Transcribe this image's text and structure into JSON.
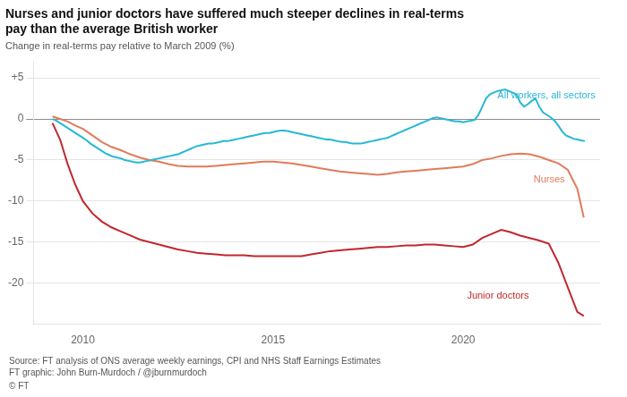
{
  "chart_data": {
    "type": "line",
    "title": "Nurses and junior doctors have suffered much steeper declines in real-terms\npay than the average British worker",
    "subtitle": "Change in real-terms pay relative to March 2009 (%)",
    "source": "Source: FT analysis of ONS average weekly earnings, CPI and NHS Staff Earnings Estimates\nFT graphic: John Burn-Murdoch / @jburnmurdoch",
    "copyright": "© FT",
    "xlim": [
      2008.7,
      2023.6
    ],
    "xticks": [
      2010,
      2015,
      2020
    ],
    "ylim": [
      -25,
      7
    ],
    "yticks": [
      {
        "value": 5,
        "label": "+5"
      },
      0,
      -5,
      -10,
      -15,
      -20
    ],
    "grid": "y",
    "series": [
      {
        "name": "All workers, all sectors",
        "color": "#27B8D4",
        "x": [
          2009.2,
          2009.3,
          2009.4,
          2009.5,
          2009.6,
          2009.7,
          2009.8,
          2009.9,
          2010.0,
          2010.1,
          2010.2,
          2010.3,
          2010.4,
          2010.5,
          2010.6,
          2010.7,
          2010.8,
          2010.9,
          2011.0,
          2011.1,
          2011.2,
          2011.3,
          2011.4,
          2011.5,
          2011.6,
          2011.7,
          2011.8,
          2011.9,
          2012.0,
          2012.1,
          2012.2,
          2012.3,
          2012.4,
          2012.5,
          2012.6,
          2012.7,
          2012.8,
          2012.9,
          2013.0,
          2013.1,
          2013.2,
          2013.3,
          2013.4,
          2013.5,
          2013.6,
          2013.7,
          2013.8,
          2013.9,
          2014.0,
          2014.1,
          2014.2,
          2014.3,
          2014.4,
          2014.5,
          2014.6,
          2014.7,
          2014.8,
          2014.9,
          2015.0,
          2015.1,
          2015.2,
          2015.3,
          2015.4,
          2015.5,
          2015.6,
          2015.7,
          2015.8,
          2015.9,
          2016.0,
          2016.1,
          2016.2,
          2016.3,
          2016.4,
          2016.5,
          2016.6,
          2016.7,
          2016.8,
          2016.9,
          2017.0,
          2017.1,
          2017.2,
          2017.3,
          2017.4,
          2017.5,
          2017.6,
          2017.7,
          2017.8,
          2017.9,
          2018.0,
          2018.1,
          2018.2,
          2018.3,
          2018.4,
          2018.5,
          2018.6,
          2018.7,
          2018.8,
          2018.9,
          2019.0,
          2019.1,
          2019.2,
          2019.3,
          2019.4,
          2019.5,
          2019.6,
          2019.7,
          2019.8,
          2019.9,
          2020.0,
          2020.1,
          2020.2,
          2020.3,
          2020.4,
          2020.5,
          2020.6,
          2020.7,
          2020.8,
          2020.9,
          2021.0,
          2021.1,
          2021.2,
          2021.3,
          2021.4,
          2021.5,
          2021.6,
          2021.7,
          2021.8,
          2021.9,
          2022.0,
          2022.1,
          2022.2,
          2022.3,
          2022.4,
          2022.5,
          2022.6,
          2022.7,
          2022.8,
          2022.9,
          2023.0,
          2023.1,
          2023.2
        ],
        "values": [
          0.0,
          -0.2,
          -0.5,
          -0.8,
          -1.1,
          -1.4,
          -1.7,
          -2.0,
          -2.3,
          -2.6,
          -3.0,
          -3.3,
          -3.6,
          -3.9,
          -4.2,
          -4.4,
          -4.6,
          -4.7,
          -4.8,
          -5.0,
          -5.1,
          -5.2,
          -5.3,
          -5.3,
          -5.2,
          -5.1,
          -5.0,
          -4.9,
          -4.8,
          -4.7,
          -4.6,
          -4.5,
          -4.4,
          -4.3,
          -4.1,
          -3.9,
          -3.7,
          -3.5,
          -3.3,
          -3.2,
          -3.1,
          -3.0,
          -3.0,
          -2.9,
          -2.8,
          -2.7,
          -2.7,
          -2.6,
          -2.5,
          -2.4,
          -2.3,
          -2.2,
          -2.1,
          -2.0,
          -1.9,
          -1.8,
          -1.7,
          -1.7,
          -1.6,
          -1.5,
          -1.4,
          -1.4,
          -1.5,
          -1.6,
          -1.7,
          -1.8,
          -1.9,
          -2.0,
          -2.1,
          -2.2,
          -2.3,
          -2.4,
          -2.5,
          -2.5,
          -2.6,
          -2.7,
          -2.8,
          -2.8,
          -2.9,
          -3.0,
          -3.0,
          -3.0,
          -2.9,
          -2.8,
          -2.7,
          -2.6,
          -2.5,
          -2.4,
          -2.3,
          -2.1,
          -1.9,
          -1.7,
          -1.5,
          -1.3,
          -1.1,
          -0.9,
          -0.7,
          -0.5,
          -0.3,
          -0.1,
          0.1,
          0.2,
          0.1,
          0.0,
          -0.1,
          -0.2,
          -0.3,
          -0.3,
          -0.4,
          -0.3,
          -0.2,
          -0.1,
          0.5,
          1.5,
          2.5,
          3.0,
          3.2,
          3.4,
          3.5,
          3.6,
          3.4,
          3.2,
          3.0,
          2.0,
          1.5,
          1.8,
          2.2,
          2.5,
          1.5,
          0.8,
          0.5,
          0.2,
          -0.2,
          -0.8,
          -1.5,
          -2.0,
          -2.2,
          -2.4,
          -2.5,
          -2.6,
          -2.7
        ]
      },
      {
        "name": "Nurses",
        "color": "#E07B5A",
        "x": [
          2009.2,
          2009.4,
          2009.6,
          2009.8,
          2010.0,
          2010.25,
          2010.5,
          2010.75,
          2011.0,
          2011.25,
          2011.5,
          2011.75,
          2012.0,
          2012.25,
          2012.5,
          2012.75,
          2013.0,
          2013.25,
          2013.5,
          2013.75,
          2014.0,
          2014.25,
          2014.5,
          2014.75,
          2015.0,
          2015.25,
          2015.5,
          2015.75,
          2016.0,
          2016.25,
          2016.5,
          2016.75,
          2017.0,
          2017.25,
          2017.5,
          2017.75,
          2018.0,
          2018.25,
          2018.5,
          2018.75,
          2019.0,
          2019.25,
          2019.5,
          2019.75,
          2020.0,
          2020.25,
          2020.5,
          2020.75,
          2021.0,
          2021.25,
          2021.5,
          2021.75,
          2022.0,
          2022.25,
          2022.5,
          2022.75,
          2023.0,
          2023.17
        ],
        "values": [
          0.3,
          0.0,
          -0.3,
          -0.8,
          -1.2,
          -2.0,
          -2.8,
          -3.4,
          -3.8,
          -4.3,
          -4.7,
          -5.0,
          -5.2,
          -5.5,
          -5.7,
          -5.8,
          -5.8,
          -5.8,
          -5.7,
          -5.6,
          -5.5,
          -5.4,
          -5.3,
          -5.2,
          -5.2,
          -5.3,
          -5.4,
          -5.6,
          -5.8,
          -6.0,
          -6.2,
          -6.4,
          -6.5,
          -6.6,
          -6.7,
          -6.8,
          -6.7,
          -6.5,
          -6.4,
          -6.3,
          -6.2,
          -6.1,
          -6.0,
          -5.9,
          -5.8,
          -5.5,
          -5.0,
          -4.8,
          -4.5,
          -4.3,
          -4.2,
          -4.3,
          -4.6,
          -5.0,
          -5.4,
          -6.2,
          -8.5,
          -12.0
        ]
      },
      {
        "name": "Junior doctors",
        "color": "#C0282D",
        "x": [
          2009.2,
          2009.4,
          2009.6,
          2009.8,
          2010.0,
          2010.25,
          2010.5,
          2010.75,
          2011.0,
          2011.25,
          2011.5,
          2011.75,
          2012.0,
          2012.25,
          2012.5,
          2012.75,
          2013.0,
          2013.25,
          2013.5,
          2013.75,
          2014.0,
          2014.25,
          2014.5,
          2014.75,
          2015.0,
          2015.25,
          2015.5,
          2015.75,
          2016.0,
          2016.25,
          2016.5,
          2016.75,
          2017.0,
          2017.25,
          2017.5,
          2017.75,
          2018.0,
          2018.25,
          2018.5,
          2018.75,
          2019.0,
          2019.25,
          2019.5,
          2019.75,
          2020.0,
          2020.25,
          2020.5,
          2020.75,
          2021.0,
          2021.25,
          2021.5,
          2021.75,
          2022.0,
          2022.25,
          2022.5,
          2022.75,
          2023.0,
          2023.17
        ],
        "values": [
          -0.5,
          -2.5,
          -5.5,
          -8.0,
          -10.0,
          -11.5,
          -12.5,
          -13.2,
          -13.7,
          -14.2,
          -14.7,
          -15.0,
          -15.3,
          -15.6,
          -15.9,
          -16.1,
          -16.3,
          -16.4,
          -16.5,
          -16.6,
          -16.6,
          -16.6,
          -16.7,
          -16.7,
          -16.7,
          -16.7,
          -16.7,
          -16.7,
          -16.5,
          -16.3,
          -16.1,
          -16.0,
          -15.9,
          -15.8,
          -15.7,
          -15.6,
          -15.6,
          -15.5,
          -15.4,
          -15.4,
          -15.3,
          -15.3,
          -15.4,
          -15.5,
          -15.6,
          -15.3,
          -14.5,
          -14.0,
          -13.5,
          -13.8,
          -14.2,
          -14.5,
          -14.8,
          -15.2,
          -17.5,
          -20.5,
          -23.5,
          -24.0
        ]
      }
    ],
    "annotations": [
      {
        "text": "All workers, all sectors",
        "x": 2020.9,
        "y": 2.2,
        "color": "#27B8D4"
      },
      {
        "text": "Nurses",
        "x": 2021.85,
        "y": -6.8,
        "color": "#E07B5A"
      },
      {
        "text": "Junior doctors",
        "x": 2020.1,
        "y": -21.0,
        "color": "#C0282D"
      }
    ]
  }
}
